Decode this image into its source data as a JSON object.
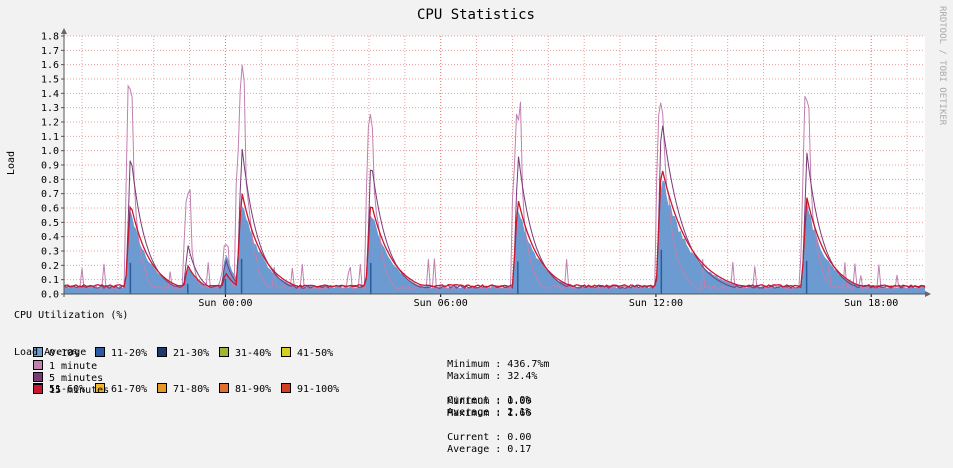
{
  "chart_data": {
    "type": "area",
    "title": "CPU Statistics",
    "ylabel": "Load",
    "watermark": "RRDTOOL / TOBI OETIKER",
    "ylim": [
      0,
      1.8
    ],
    "y_ticks": [
      "0.0",
      "0.1",
      "0.2",
      "0.3",
      "0.4",
      "0.5",
      "0.6",
      "0.7",
      "0.8",
      "0.9",
      "1.0",
      "1.1",
      "1.2",
      "1.3",
      "1.4",
      "1.5",
      "1.6",
      "1.7",
      "1.8"
    ],
    "x_ticks": [
      {
        "label": "Sun 00:00",
        "hour": 24
      },
      {
        "label": "Sun 06:00",
        "hour": 30
      },
      {
        "label": "Sun 12:00",
        "hour": 36
      },
      {
        "label": "Sun 18:00",
        "hour": 42
      }
    ],
    "xlim_hours": [
      19.5,
      43.5
    ],
    "peaks": [
      {
        "hour": 21.35,
        "l1": 1.48,
        "l5": 1.0,
        "l15": 0.64,
        "cpu": 0.62,
        "width": 0.55
      },
      {
        "hour": 22.95,
        "l1": 0.75,
        "l5": 0.35,
        "l15": 0.2,
        "cpu": 0.2,
        "width": 0.4
      },
      {
        "hour": 24.0,
        "l1": 0.35,
        "l5": 0.25,
        "l15": 0.15,
        "cpu": 0.3,
        "width": 0.35
      },
      {
        "hour": 24.45,
        "l1": 1.66,
        "l5": 1.05,
        "l15": 0.72,
        "cpu": 0.7,
        "width": 0.6
      },
      {
        "hour": 28.05,
        "l1": 1.35,
        "l5": 0.95,
        "l15": 0.65,
        "cpu": 0.62,
        "width": 0.6
      },
      {
        "hour": 32.15,
        "l1": 1.4,
        "l5": 1.0,
        "l15": 0.67,
        "cpu": 0.65,
        "width": 0.6
      },
      {
        "hour": 36.15,
        "l1": 1.45,
        "l5": 1.25,
        "l15": 0.9,
        "cpu": 0.88,
        "width": 0.8
      },
      {
        "hour": 40.2,
        "l1": 1.45,
        "l5": 1.0,
        "l15": 0.68,
        "cpu": 0.66,
        "width": 0.6
      }
    ],
    "legend": {
      "cpu_title": "CPU Utilization (%)",
      "cpu_bins": [
        {
          "label": "0-10%",
          "color": "#6b9bd1"
        },
        {
          "label": "11-20%",
          "color": "#2c5aa0"
        },
        {
          "label": "21-30%",
          "color": "#1a3a70"
        },
        {
          "label": "31-40%",
          "color": "#9ab832"
        },
        {
          "label": "41-50%",
          "color": "#d8d020"
        },
        {
          "label": "51-60%",
          "color": "#f0e020"
        },
        {
          "label": "61-70%",
          "color": "#f0b830"
        },
        {
          "label": "71-80%",
          "color": "#e89828"
        },
        {
          "label": "81-90%",
          "color": "#e07030"
        },
        {
          "label": "91-100%",
          "color": "#d04020"
        }
      ],
      "cpu_stats": {
        "minimum": "Minimum : 436.7%m",
        "maximum": "Maximum : 32.4%",
        "current": "Current : 1.0%",
        "average": "Average : 2.1%"
      },
      "load_title": "Load Average",
      "load_items": [
        {
          "label": "1 minute",
          "color": "#c080b0"
        },
        {
          "label": "5 minutes",
          "color": "#7a3a78"
        },
        {
          "label": "15 minutes",
          "color": "#c81830"
        }
      ],
      "load_stats": {
        "minimum": "Minimum : 0.00",
        "maximum": "Maximum : 1.66",
        "current": "Current : 0.00",
        "average": "Average : 0.17"
      }
    }
  }
}
